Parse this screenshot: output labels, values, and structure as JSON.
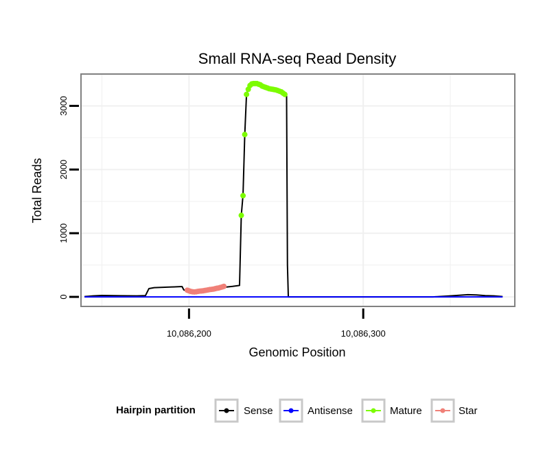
{
  "chart_data": {
    "type": "line",
    "title": "Small RNA-seq Read Density",
    "xlabel": "Genomic Position",
    "ylabel": "Total Reads",
    "xlim": [
      10086138,
      10086387
    ],
    "ylim": [
      -150,
      3500
    ],
    "x_ticks": [
      10086200,
      10086300
    ],
    "x_tick_labels": [
      "10,086,200",
      "10,086,300"
    ],
    "y_ticks": [
      0,
      1000,
      2000,
      3000
    ],
    "y_tick_labels": [
      "0",
      "1000",
      "2000",
      "3000"
    ],
    "grid": true,
    "legend": {
      "title": "Hairpin partition",
      "position": "bottom",
      "entries": [
        {
          "name": "Sense",
          "color": "#000000"
        },
        {
          "name": "Antisense",
          "color": "#0000ff"
        },
        {
          "name": "Mature",
          "color": "#7cfc00"
        },
        {
          "name": "Star",
          "color": "#f08078"
        }
      ]
    },
    "series": [
      {
        "name": "Sense",
        "color": "#000000",
        "style": "line",
        "x": [
          10086140,
          10086145,
          10086150,
          10086160,
          10086170,
          10086175,
          10086177,
          10086180,
          10086185,
          10086190,
          10086196,
          10086197,
          10086200,
          10086205,
          10086210,
          10086215,
          10086220,
          10086225,
          10086229,
          10086230,
          10086231,
          10086232,
          10086233,
          10086234,
          10086236,
          10086238,
          10086240,
          10086243,
          10086246,
          10086250,
          10086253,
          10086255,
          10086256,
          10086256.5,
          10086257,
          10086258,
          10086280,
          10086300,
          10086320,
          10086340,
          10086350,
          10086355,
          10086360,
          10086365,
          10086370,
          10086375,
          10086380
        ],
        "y": [
          5,
          15,
          22,
          18,
          15,
          20,
          130,
          145,
          150,
          155,
          162,
          110,
          80,
          75,
          85,
          110,
          150,
          165,
          180,
          1280,
          1600,
          2550,
          3180,
          3270,
          3340,
          3350,
          3330,
          3300,
          3270,
          3250,
          3220,
          3190,
          3150,
          500,
          0,
          0,
          0,
          0,
          0,
          0,
          15,
          25,
          35,
          30,
          20,
          15,
          5
        ]
      },
      {
        "name": "Antisense",
        "color": "#0000ff",
        "style": "line",
        "x": [
          10086140,
          10086380
        ],
        "y": [
          0,
          0
        ]
      },
      {
        "name": "Mature",
        "color": "#7cfc00",
        "style": "points",
        "x": [
          10086230,
          10086231,
          10086232,
          10086233,
          10086234,
          10086235,
          10086236,
          10086237,
          10086238,
          10086239,
          10086240,
          10086241,
          10086242,
          10086243,
          10086244,
          10086245,
          10086246,
          10086247,
          10086248,
          10086249,
          10086250,
          10086251,
          10086252,
          10086253,
          10086254,
          10086255
        ],
        "y": [
          1280,
          1590,
          2550,
          3180,
          3260,
          3320,
          3345,
          3350,
          3350,
          3350,
          3340,
          3330,
          3310,
          3300,
          3290,
          3280,
          3270,
          3265,
          3260,
          3255,
          3250,
          3240,
          3230,
          3220,
          3200,
          3180
        ]
      },
      {
        "name": "Star",
        "color": "#f08078",
        "style": "points",
        "x": [
          10086199,
          10086200,
          10086201,
          10086202,
          10086203,
          10086204,
          10086205,
          10086206,
          10086207,
          10086208,
          10086209,
          10086210,
          10086211,
          10086212,
          10086213,
          10086214,
          10086215,
          10086216,
          10086217,
          10086218,
          10086219,
          10086220
        ],
        "y": [
          105,
          95,
          85,
          80,
          78,
          80,
          85,
          90,
          92,
          95,
          100,
          105,
          110,
          115,
          118,
          122,
          128,
          135,
          140,
          148,
          155,
          165
        ]
      }
    ]
  }
}
